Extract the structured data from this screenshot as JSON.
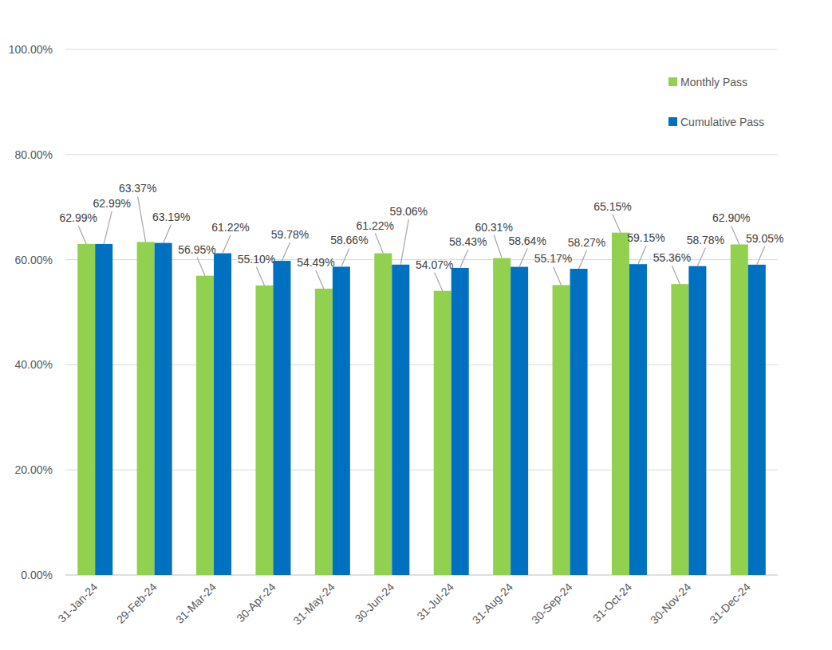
{
  "chart_data": {
    "type": "bar",
    "categories": [
      "31-Jan-24",
      "29-Feb-24",
      "31-Mar-24",
      "30-Apr-24",
      "31-May-24",
      "30-Jun-24",
      "31-Jul-24",
      "31-Aug-24",
      "30-Sep-24",
      "31-Oct-24",
      "30-Nov-24",
      "31-Dec-24"
    ],
    "series": [
      {
        "name": "Monthly Pass",
        "color": "#92d050",
        "values": [
          62.99,
          63.37,
          56.95,
          55.1,
          54.49,
          61.22,
          54.07,
          60.31,
          55.17,
          65.15,
          55.36,
          62.9
        ],
        "value_labels": [
          "62.99%",
          "63.37%",
          "56.95%",
          "55.10%",
          "54.49%",
          "61.22%",
          "54.07%",
          "60.31%",
          "55.17%",
          "65.15%",
          "55.36%",
          "62.90%"
        ]
      },
      {
        "name": "Cumulative Pass",
        "color": "#0070c0",
        "values": [
          62.99,
          63.19,
          61.22,
          59.78,
          58.66,
          59.06,
          58.43,
          58.64,
          58.27,
          59.15,
          58.78,
          59.05
        ],
        "value_labels": [
          "62.99%",
          "63.19%",
          "61.22%",
          "59.78%",
          "58.66%",
          "59.06%",
          "58.43%",
          "58.64%",
          "58.27%",
          "59.15%",
          "58.78%",
          "59.05%"
        ]
      }
    ],
    "ylim": [
      0,
      100
    ],
    "yticks": [
      {
        "value": 0,
        "label": "0.00%"
      },
      {
        "value": 20,
        "label": "20.00%"
      },
      {
        "value": 40,
        "label": "40.00%"
      },
      {
        "value": 60,
        "label": "60.00%"
      },
      {
        "value": 80,
        "label": "80.00%"
      },
      {
        "value": 100,
        "label": "100.00%"
      }
    ],
    "grid": true,
    "legend": "upper-right",
    "data_labels": true
  }
}
